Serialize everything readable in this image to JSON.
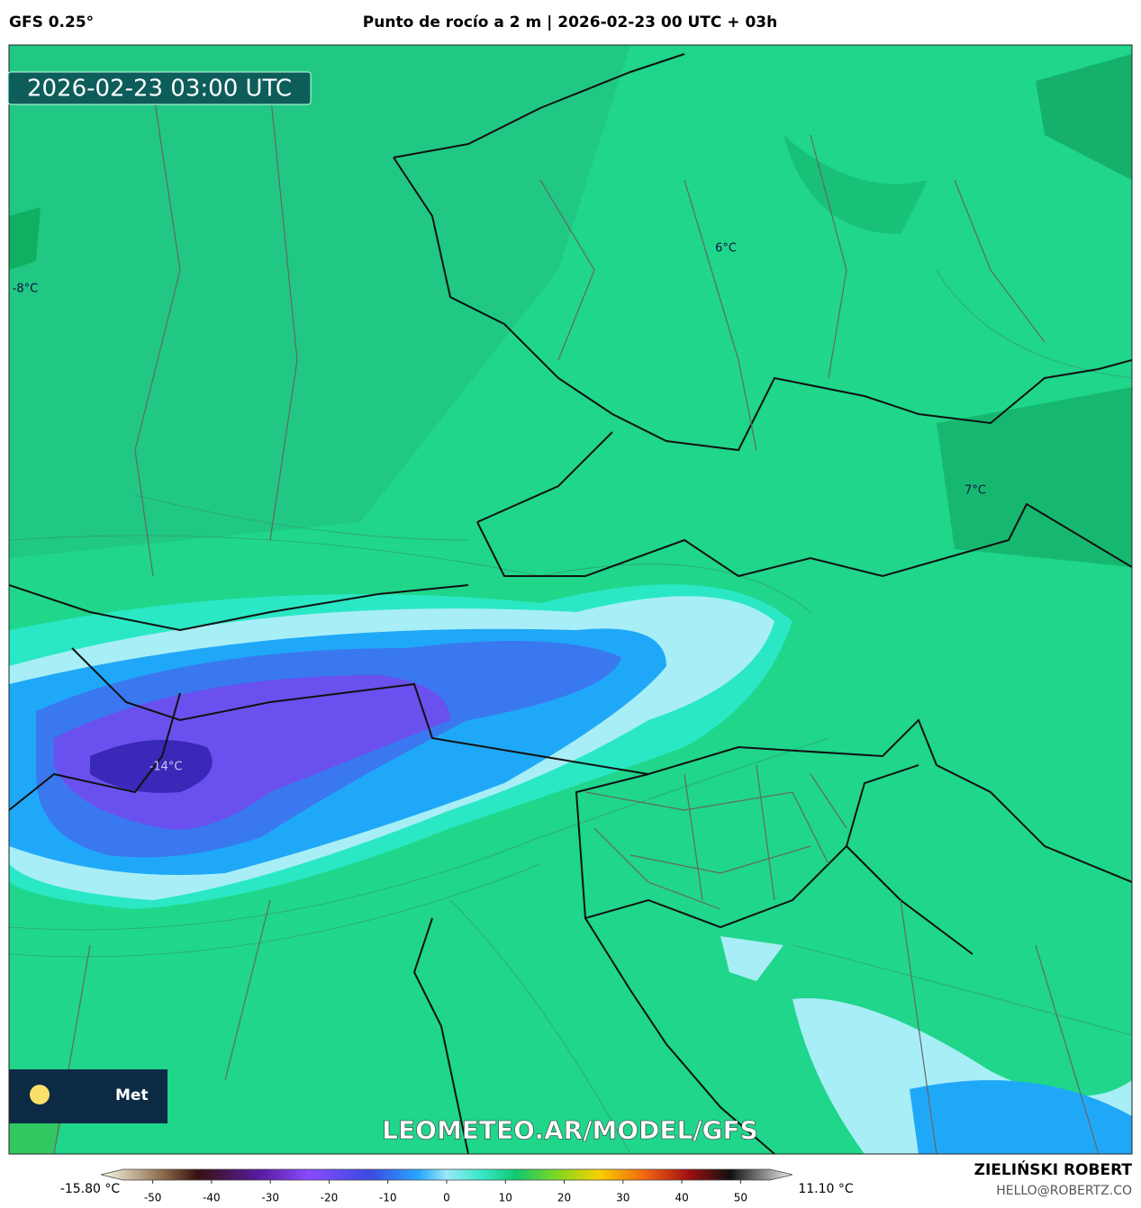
{
  "header": {
    "model": "GFS 0.25°",
    "title": "Punto de rocío a 2 m | 2026-02-23 00 UTC + 03h"
  },
  "map": {
    "timestamp": "2026-02-23 03:00 UTC",
    "contour_labels": [
      "6°C",
      "-8°C",
      "7°C",
      "-14°C"
    ],
    "logo_text": "Met",
    "watermark": "LEOMETEO.AR/MODEL/GFS"
  },
  "colorbar": {
    "min_label": "-15.80 °C",
    "max_label": "11.10 °C",
    "lim": [
      -55,
      55
    ],
    "ticks": [
      -50,
      -40,
      -30,
      -20,
      -10,
      0,
      10,
      20,
      30,
      40,
      50
    ]
  },
  "credits": {
    "author": "ZIELIŃSKI ROBERT",
    "contact": "HELLO@ROBERTZ.CO"
  }
}
